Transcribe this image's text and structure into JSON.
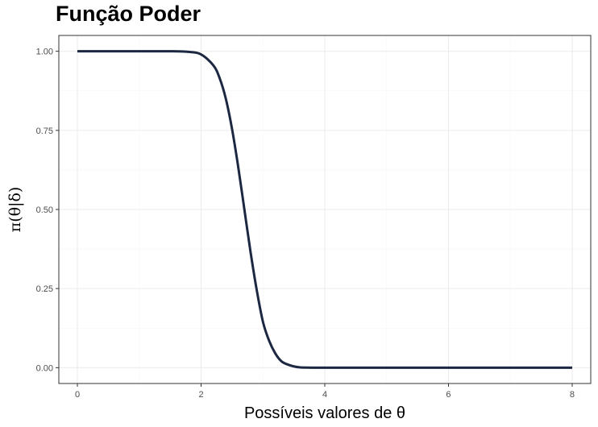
{
  "chart_data": {
    "type": "line",
    "title": "Função Poder",
    "xlabel": "Possíveis valores de θ",
    "ylabel": "π(θ|δ)",
    "xlim": [
      -0.3,
      8.3
    ],
    "ylim": [
      -0.05,
      1.05
    ],
    "x_ticks": [
      0,
      2,
      4,
      6,
      8
    ],
    "x_tick_labels": [
      "0",
      "2",
      "4",
      "6",
      "8"
    ],
    "y_ticks": [
      0.0,
      0.25,
      0.5,
      0.75,
      1.0
    ],
    "y_tick_labels": [
      "0.00",
      "0.25",
      "0.50",
      "0.75",
      "1.00"
    ],
    "grid": true,
    "series": [
      {
        "x": [
          0,
          1,
          1.5,
          1.8,
          2.0,
          2.2,
          2.3,
          2.4,
          2.5,
          2.6,
          2.7,
          2.8,
          2.9,
          3.0,
          3.1,
          3.2,
          3.3,
          3.4,
          3.5,
          3.6,
          3.8,
          4.0,
          5,
          6,
          7,
          8
        ],
        "y": [
          1.0,
          1.0,
          1.0,
          0.998,
          0.99,
          0.955,
          0.915,
          0.85,
          0.755,
          0.635,
          0.5,
          0.365,
          0.245,
          0.145,
          0.085,
          0.045,
          0.02,
          0.01,
          0.004,
          0.001,
          0.0,
          0.0,
          0.0,
          0.0,
          0.0,
          0.0
        ],
        "color": "#1c2841"
      }
    ]
  },
  "colors": {
    "line": "#1c2841",
    "grid_major": "#ebebeb",
    "grid_minor": "#f5f5f5",
    "panel_border": "#333333",
    "tick_text": "#4d4d4d"
  }
}
